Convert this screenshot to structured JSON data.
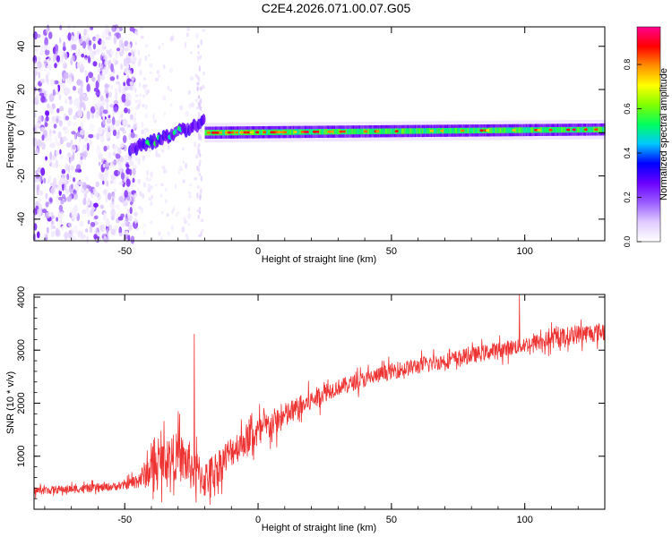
{
  "figure_title": "C2E4.2026.071.00.07.G05",
  "chart_data": [
    {
      "type": "heatmap",
      "title": "C2E4.2026.071.00.07.G05",
      "xlabel": "Height of straight line (km)",
      "ylabel": "Frequency (Hz)",
      "xlim": [
        -84,
        130
      ],
      "ylim": [
        -50,
        49
      ],
      "xticks": [
        -50,
        0,
        50,
        100
      ],
      "yticks": [
        -40,
        -20,
        0,
        20,
        40
      ],
      "colorbar": {
        "label": "Normalized spectral amplitude",
        "range": [
          0,
          0.97
        ],
        "ticks": [
          "0.0",
          "0.2",
          "0.4",
          "0.6",
          "0.8"
        ],
        "colormap": [
          "#ffffff",
          "#e0ccff",
          "#9a5cff",
          "#6a00ff",
          "#0000ff",
          "#00c8ff",
          "#00ff60",
          "#80ff00",
          "#ffff00",
          "#ff9000",
          "#ff0000",
          "#ff0090"
        ]
      },
      "features": [
        {
          "name": "scattered noise",
          "x_range": [
            -84,
            -46
          ],
          "y_range": [
            -50,
            49
          ],
          "amplitude": 0.1
        },
        {
          "name": "noise fringe",
          "x_range": [
            -46,
            -20
          ],
          "y_range": [
            -50,
            49
          ],
          "amplitude": 0.03
        },
        {
          "name": "signal onset",
          "x_range": [
            -48,
            -20
          ],
          "frequency_hz": [
            -8,
            5
          ],
          "amplitude": 0.3
        },
        {
          "name": "carrier line",
          "x_range": [
            -20,
            130
          ],
          "frequency_hz": [
            0,
            1.5
          ],
          "amplitude": 0.6
        }
      ]
    },
    {
      "type": "line",
      "xlabel": "Height of straight line (km)",
      "ylabel": "SNR (10 * v/v)",
      "xlim": [
        -84,
        130
      ],
      "ylim": [
        0,
        4050
      ],
      "xticks": [
        -50,
        0,
        50,
        100
      ],
      "yticks": [
        1000,
        2000,
        3000,
        4000
      ],
      "series": [
        {
          "name": "SNR",
          "color": "#ee3333",
          "x": [
            -84,
            -70,
            -60,
            -50,
            -45,
            -40,
            -35,
            -30,
            -25,
            -20,
            -15,
            -10,
            -5,
            0,
            5,
            10,
            15,
            20,
            25,
            30,
            40,
            50,
            60,
            70,
            80,
            90,
            100,
            110,
            120,
            130
          ],
          "y": [
            350,
            380,
            400,
            450,
            550,
            750,
            950,
            1000,
            800,
            550,
            800,
            1100,
            1300,
            1450,
            1600,
            1750,
            1900,
            2050,
            2200,
            2300,
            2450,
            2600,
            2700,
            2800,
            2900,
            3000,
            3100,
            3200,
            3300,
            3350
          ],
          "spread": [
            150,
            150,
            150,
            150,
            300,
            700,
            800,
            900,
            900,
            700,
            700,
            600,
            600,
            600,
            550,
            500,
            450,
            400,
            350,
            300,
            300,
            300,
            300,
            300,
            300,
            300,
            300,
            350,
            350,
            350
          ],
          "peaks": [
            {
              "x": -24,
              "y": 3300
            },
            {
              "x": 98,
              "y": 4050
            }
          ]
        }
      ]
    }
  ]
}
